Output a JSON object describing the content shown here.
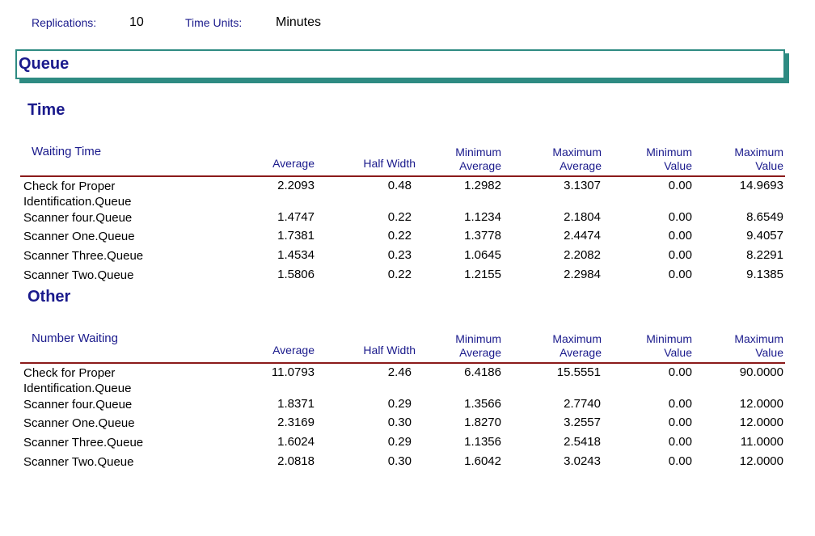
{
  "header": {
    "replications_label": "Replications:",
    "replications_value": "10",
    "time_units_label": "Time Units:",
    "time_units_value": "Minutes"
  },
  "banner": {
    "title": "Queue"
  },
  "columns": {
    "average": "Average",
    "half_width": "Half Width",
    "min_avg_1": "Minimum",
    "min_avg_2": "Average",
    "max_avg_1": "Maximum",
    "max_avg_2": "Average",
    "min_val_1": "Minimum",
    "min_val_2": "Value",
    "max_val_1": "Maximum",
    "max_val_2": "Value"
  },
  "time": {
    "title": "Time",
    "table_title": "Waiting Time",
    "rows": [
      {
        "name1": "Check for Proper",
        "name2": "Identification.Queue",
        "avg": "2.2093",
        "hw": "0.48",
        "minavg": "1.2982",
        "maxavg": "3.1307",
        "minval": "0.00",
        "maxval": "14.9693"
      },
      {
        "name1": "Scanner four.Queue",
        "name2": "",
        "avg": "1.4747",
        "hw": "0.22",
        "minavg": "1.1234",
        "maxavg": "2.1804",
        "minval": "0.00",
        "maxval": "8.6549"
      },
      {
        "name1": "Scanner One.Queue",
        "name2": "",
        "avg": "1.7381",
        "hw": "0.22",
        "minavg": "1.3778",
        "maxavg": "2.4474",
        "minval": "0.00",
        "maxval": "9.4057"
      },
      {
        "name1": "Scanner Three.Queue",
        "name2": "",
        "avg": "1.4534",
        "hw": "0.23",
        "minavg": "1.0645",
        "maxavg": "2.2082",
        "minval": "0.00",
        "maxval": "8.2291"
      },
      {
        "name1": "Scanner Two.Queue",
        "name2": "",
        "avg": "1.5806",
        "hw": "0.22",
        "minavg": "1.2155",
        "maxavg": "2.2984",
        "minval": "0.00",
        "maxval": "9.1385"
      }
    ]
  },
  "other": {
    "title": "Other",
    "table_title": "Number Waiting",
    "rows": [
      {
        "name1": "Check for Proper",
        "name2": "Identification.Queue",
        "avg": "11.0793",
        "hw": "2.46",
        "minavg": "6.4186",
        "maxavg": "15.5551",
        "minval": "0.00",
        "maxval": "90.0000"
      },
      {
        "name1": "Scanner four.Queue",
        "name2": "",
        "avg": "1.8371",
        "hw": "0.29",
        "minavg": "1.3566",
        "maxavg": "2.7740",
        "minval": "0.00",
        "maxval": "12.0000"
      },
      {
        "name1": "Scanner One.Queue",
        "name2": "",
        "avg": "2.3169",
        "hw": "0.30",
        "minavg": "1.8270",
        "maxavg": "3.2557",
        "minval": "0.00",
        "maxval": "12.0000"
      },
      {
        "name1": "Scanner Three.Queue",
        "name2": "",
        "avg": "1.6024",
        "hw": "0.29",
        "minavg": "1.1356",
        "maxavg": "2.5418",
        "minval": "0.00",
        "maxval": "11.0000"
      },
      {
        "name1": "Scanner Two.Queue",
        "name2": "",
        "avg": "2.0818",
        "hw": "0.30",
        "minavg": "1.6042",
        "maxavg": "3.0243",
        "minval": "0.00",
        "maxval": "12.0000"
      }
    ]
  }
}
